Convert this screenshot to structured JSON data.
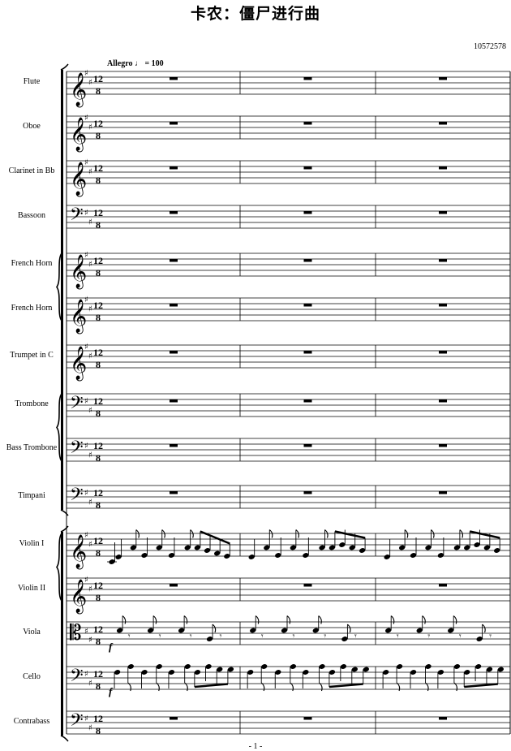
{
  "title": "卡农：僵尸进行曲",
  "catalog_number": "10572578",
  "tempo": {
    "marking": "Allegro",
    "beat_glyph": "♩",
    "bpm": "= 100"
  },
  "time_signature": {
    "upper": "12",
    "lower": "8"
  },
  "dynamics": {
    "viola": "f",
    "cello": "f"
  },
  "page_number": "- 1 -",
  "instruments": [
    {
      "name": "Flute",
      "clef": "treble"
    },
    {
      "name": "Oboe",
      "clef": "treble"
    },
    {
      "name": "Clarinet in Bb",
      "clef": "treble"
    },
    {
      "name": "Bassoon",
      "clef": "bass"
    },
    {
      "name": "French Horn",
      "clef": "treble"
    },
    {
      "name": "French Horn",
      "clef": "treble"
    },
    {
      "name": "Trumpet in C",
      "clef": "treble"
    },
    {
      "name": "Trombone",
      "clef": "bass"
    },
    {
      "name": "Bass Trombone",
      "clef": "bass"
    },
    {
      "name": "Timpani",
      "clef": "bass"
    },
    {
      "name": "Violin I",
      "clef": "treble"
    },
    {
      "name": "Violin II",
      "clef": "treble"
    },
    {
      "name": "Viola",
      "clef": "alto"
    },
    {
      "name": "Cello",
      "clef": "bass"
    },
    {
      "name": "Contrabass",
      "clef": "bass"
    }
  ],
  "measures_per_system": 3
}
